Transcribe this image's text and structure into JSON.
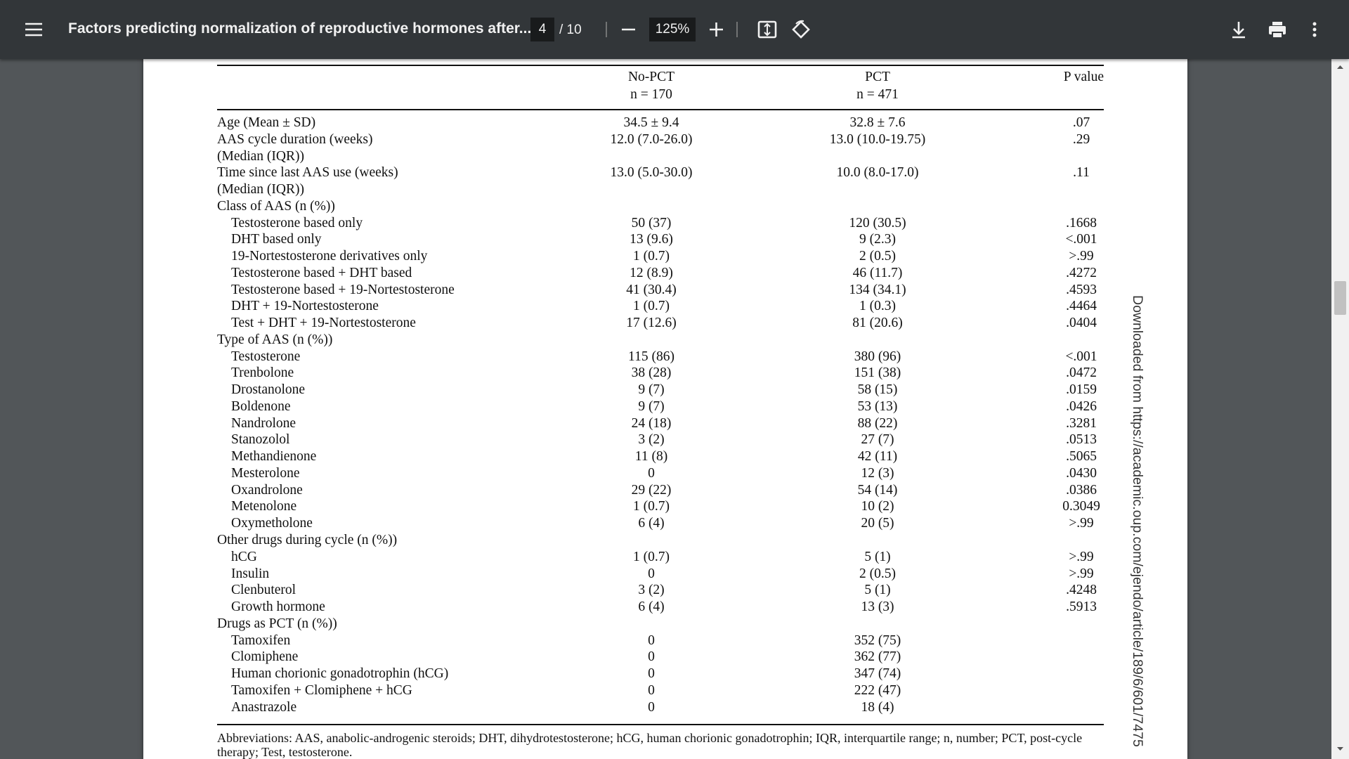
{
  "toolbar": {
    "title": "Factors predicting normalization of reproductive hormones after...",
    "page": "4",
    "page_total": "/ 10",
    "zoom": "125%"
  },
  "table": {
    "columns": [
      "",
      "No-PCT",
      "PCT",
      "P value"
    ],
    "subheaders": [
      "",
      "n = 170",
      "n = 471",
      ""
    ],
    "sections": [
      {
        "rows": [
          {
            "label": [
              "Age (Mean ± SD)"
            ],
            "values": [
              "34.5 ± 9.4",
              "32.8 ± 7.6",
              ".07"
            ]
          },
          {
            "label": [
              "AAS cycle duration (weeks)",
              "(Median (IQR))"
            ],
            "values": [
              "12.0 (7.0-26.0)",
              "13.0 (10.0-19.75)",
              ".29"
            ]
          },
          {
            "label": [
              "Time since last AAS use (weeks)",
              "(Median (IQR))"
            ],
            "values": [
              "13.0 (5.0-30.0)",
              "10.0 (8.0-17.0)",
              ".11"
            ]
          }
        ]
      },
      {
        "heading": "Class of AAS (n (%))",
        "rows": [
          {
            "label": [
              "Testosterone based only"
            ],
            "values": [
              "50 (37)",
              "120 (30.5)",
              ".1668"
            ]
          },
          {
            "label": [
              "DHT based only"
            ],
            "values": [
              "13 (9.6)",
              "9 (2.3)",
              "<.001"
            ]
          },
          {
            "label": [
              "19-Nortestosterone derivatives only"
            ],
            "values": [
              "1 (0.7)",
              "2 (0.5)",
              ">.99"
            ]
          },
          {
            "label": [
              "Testosterone based + DHT based"
            ],
            "values": [
              "12 (8.9)",
              "46 (11.7)",
              ".4272"
            ]
          },
          {
            "label": [
              "Testosterone based + 19-Nortestosterone"
            ],
            "values": [
              "41 (30.4)",
              "134 (34.1)",
              ".4593"
            ]
          },
          {
            "label": [
              "DHT + 19-Nortestosterone"
            ],
            "values": [
              "1 (0.7)",
              "1 (0.3)",
              ".4464"
            ]
          },
          {
            "label": [
              "Test + DHT + 19-Nortestosterone"
            ],
            "values": [
              "17 (12.6)",
              "81 (20.6)",
              ".0404"
            ]
          }
        ]
      },
      {
        "heading": "Type of AAS (n (%))",
        "rows": [
          {
            "label": [
              "Testosterone"
            ],
            "values": [
              "115 (86)",
              "380 (96)",
              "<.001"
            ]
          },
          {
            "label": [
              "Trenbolone"
            ],
            "values": [
              "38 (28)",
              "151 (38)",
              ".0472"
            ]
          },
          {
            "label": [
              "Drostanolone"
            ],
            "values": [
              "9 (7)",
              "58 (15)",
              ".0159"
            ]
          },
          {
            "label": [
              "Boldenone"
            ],
            "values": [
              "9 (7)",
              "53 (13)",
              ".0426"
            ]
          },
          {
            "label": [
              "Nandrolone"
            ],
            "values": [
              "24 (18)",
              "88 (22)",
              ".3281"
            ]
          },
          {
            "label": [
              "Stanozolol"
            ],
            "values": [
              "3 (2)",
              "27 (7)",
              ".0513"
            ]
          },
          {
            "label": [
              "Methandienone"
            ],
            "values": [
              "11 (8)",
              "42 (11)",
              ".5065"
            ]
          },
          {
            "label": [
              "Mesterolone"
            ],
            "values": [
              "0",
              "12 (3)",
              ".0430"
            ]
          },
          {
            "label": [
              "Oxandrolone"
            ],
            "values": [
              "29 (22)",
              "54 (14)",
              ".0386"
            ]
          },
          {
            "label": [
              "Metenolone"
            ],
            "values": [
              "1 (0.7)",
              "10 (2)",
              "0.3049"
            ]
          },
          {
            "label": [
              "Oxymetholone"
            ],
            "values": [
              "6 (4)",
              "20 (5)",
              ">.99"
            ]
          }
        ]
      },
      {
        "heading": "Other drugs during cycle (n (%))",
        "rows": [
          {
            "label": [
              "hCG"
            ],
            "values": [
              "1 (0.7)",
              "5 (1)",
              ">.99"
            ]
          },
          {
            "label": [
              "Insulin"
            ],
            "values": [
              "0",
              "2 (0.5)",
              ">.99"
            ]
          },
          {
            "label": [
              "Clenbuterol"
            ],
            "values": [
              "3 (2)",
              "5 (1)",
              ".4248"
            ]
          },
          {
            "label": [
              "Growth hormone"
            ],
            "values": [
              "6 (4)",
              "13 (3)",
              ".5913"
            ]
          }
        ]
      },
      {
        "heading": "Drugs as PCT (n (%))",
        "rows": [
          {
            "label": [
              "Tamoxifen"
            ],
            "values": [
              "0",
              "352 (75)",
              ""
            ]
          },
          {
            "label": [
              "Clomiphene"
            ],
            "values": [
              "0",
              "362 (77)",
              ""
            ]
          },
          {
            "label": [
              "Human chorionic gonadotrophin (hCG)"
            ],
            "values": [
              "0",
              "347 (74)",
              ""
            ]
          },
          {
            "label": [
              "Tamoxifen + Clomiphene + hCG"
            ],
            "values": [
              "0",
              "222 (47)",
              ""
            ]
          },
          {
            "label": [
              "Anastrazole"
            ],
            "values": [
              "0",
              "18 (4)",
              ""
            ]
          }
        ]
      }
    ]
  },
  "footnote": "Abbreviations: AAS, anabolic-androgenic steroids; DHT, dihydrotestosterone; hCG, human chorionic gonadotrophin; IQR, interquartile range; n, number; PCT, post-cycle therapy; Test, testosterone.",
  "watermark": "Downloaded from https://academic.oup.com/ejendo/article/189/6/601/7475"
}
